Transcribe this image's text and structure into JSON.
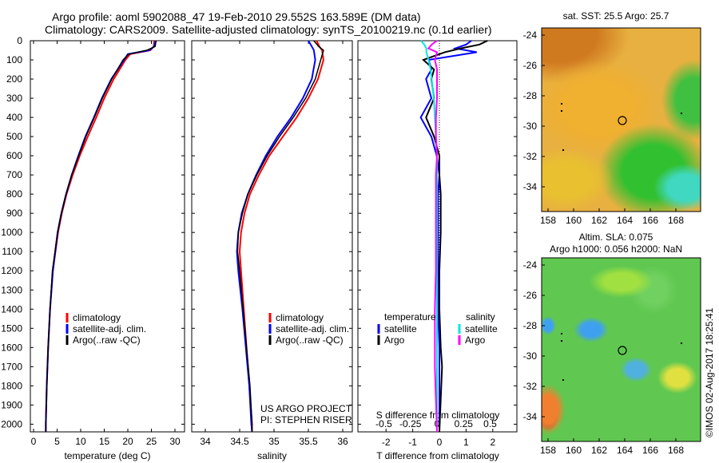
{
  "titles": {
    "line1": "Argo profile: aoml 5902088_47 19-Feb-2010 29.552S 163.589E (DM data)",
    "line2": "Climatology: CARS2009. Satellite-adjusted climatology: synTS_20100219.nc (0.1d earlier)"
  },
  "colors": {
    "climatology": "#ff0000",
    "satellite": "#0000ff",
    "argo": "#000000",
    "sal_satellite": "#00e5e5",
    "sal_argo": "#ff00ff"
  },
  "chart_data": [
    {
      "type": "line",
      "name": "temperature",
      "xlabel": "temperature (deg C)",
      "xlim": [
        -2,
        32
      ],
      "ylim": [
        2050,
        0
      ],
      "xticks": [
        "0",
        "5",
        "10",
        "15",
        "20",
        "25",
        "30"
      ],
      "xtick_values": [
        0,
        5,
        10,
        15,
        20,
        25,
        30
      ],
      "yticks": [
        "0",
        "100",
        "200",
        "300",
        "400",
        "500",
        "600",
        "700",
        "800",
        "900",
        "1000",
        "1100",
        "1200",
        "1300",
        "1400",
        "1500",
        "1600",
        "1700",
        "1800",
        "1900",
        "2000"
      ],
      "depth": [
        0,
        30,
        50,
        70,
        100,
        200,
        300,
        400,
        500,
        600,
        700,
        800,
        900,
        1000,
        1200,
        1400,
        1600,
        1800,
        2000,
        2040
      ],
      "series": [
        {
          "name": "climatology",
          "values": [
            25.6,
            25.5,
            24.8,
            20.5,
            19.5,
            17,
            15,
            13.3,
            11.5,
            9.8,
            8.3,
            7,
            6,
            5.2,
            4.1,
            3.5,
            3.1,
            2.8,
            2.6,
            2.6
          ]
        },
        {
          "name": "satellite-adj. clim.",
          "values": [
            25.9,
            25.6,
            24.5,
            20,
            19.2,
            16.5,
            14.5,
            12.8,
            11,
            9.5,
            8.1,
            6.9,
            5.9,
            5.1,
            4.1,
            3.5,
            3.1,
            2.8,
            2.6,
            2.6
          ]
        },
        {
          "name": "Argo(..raw -QC)",
          "values": [
            26,
            25.8,
            24,
            20.2,
            19,
            16.6,
            14.6,
            12.9,
            11.1,
            9.6,
            8.1,
            6.9,
            5.9,
            5.1,
            4,
            3.5,
            3.1,
            2.8,
            2.6,
            2.6
          ]
        }
      ],
      "legend": [
        "climatology",
        "satellite-adj. clim.",
        "Argo(..raw -QC)"
      ]
    },
    {
      "type": "line",
      "name": "salinity",
      "xlabel": "salinity",
      "xlim": [
        33.6,
        36.2
      ],
      "ylim": [
        2050,
        0
      ],
      "xticks": [
        "34",
        "34.5",
        "35",
        "35.5",
        "36"
      ],
      "xtick_values": [
        34,
        34.5,
        35,
        35.5,
        36
      ],
      "depth": [
        0,
        30,
        50,
        100,
        200,
        300,
        400,
        500,
        600,
        700,
        800,
        900,
        1000,
        1100,
        1200,
        1400,
        1600,
        1800,
        2000,
        2040
      ],
      "series": [
        {
          "name": "climatology",
          "values": [
            35.62,
            35.66,
            35.7,
            35.72,
            35.64,
            35.5,
            35.33,
            35.13,
            34.93,
            34.78,
            34.65,
            34.57,
            34.52,
            34.5,
            34.52,
            34.56,
            34.6,
            34.64,
            34.68,
            34.68
          ]
        },
        {
          "name": "satellite-adj. clim.",
          "values": [
            35.5,
            35.55,
            35.58,
            35.6,
            35.55,
            35.42,
            35.25,
            35.05,
            34.88,
            34.74,
            34.62,
            34.53,
            34.48,
            34.46,
            34.48,
            34.54,
            34.59,
            34.64,
            34.67,
            34.68
          ]
        },
        {
          "name": "Argo(..raw -QC)",
          "values": [
            35.58,
            35.65,
            35.72,
            35.68,
            35.6,
            35.46,
            35.28,
            35.08,
            34.9,
            34.75,
            34.62,
            34.54,
            34.48,
            34.47,
            34.5,
            34.55,
            34.6,
            34.65,
            34.68,
            34.68
          ]
        }
      ],
      "legend": [
        "climatology",
        "satellite-adj. clim.",
        "Argo(..raw -QC)"
      ],
      "annotations": [
        "US ARGO PROJECT",
        "PI: STEPHEN RISER"
      ]
    },
    {
      "type": "line",
      "name": "difference",
      "xlabel": "T difference from climatology",
      "x2label": "S difference from climatology",
      "xlim": [
        -3,
        3
      ],
      "x2lim": [
        -0.75,
        0.75
      ],
      "ylim": [
        2050,
        0
      ],
      "xticks": [
        "-2",
        "-1",
        "0",
        "1",
        "2"
      ],
      "xtick_values": [
        -2,
        -1,
        0,
        1,
        2
      ],
      "x2ticks": [
        "-0.5",
        "-0.25",
        "0",
        "0.25",
        "0.5"
      ],
      "x2tick_values": [
        -0.5,
        -0.25,
        0,
        0.25,
        0.5
      ],
      "depth": [
        0,
        20,
        40,
        60,
        100,
        150,
        200,
        300,
        400,
        500,
        600,
        700,
        800,
        1000,
        1200,
        1400,
        1600,
        1700,
        2040
      ],
      "series": [
        {
          "name": "T satellite",
          "values": [
            1.2,
            1.0,
            0.6,
            1.4,
            -0.4,
            -0.3,
            -0.5,
            -0.3,
            -0.7,
            -0.3,
            -0.1,
            0,
            -0.05,
            -0.05,
            -0.05,
            -0.05,
            0,
            0,
            0
          ]
        },
        {
          "name": "T Argo",
          "values": [
            1.8,
            1.5,
            0.8,
            0.2,
            -0.6,
            -0.2,
            -0.3,
            -0.2,
            -0.5,
            -0.2,
            0,
            0,
            0.05,
            0.05,
            0,
            0,
            0.05,
            0.1,
            0
          ]
        },
        {
          "name": "S satellite",
          "values": [
            -0.15,
            -0.12,
            -0.1,
            -0.1,
            -0.08,
            -0.06,
            -0.05,
            -0.03,
            -0.02,
            -0.01,
            0,
            0,
            0,
            0,
            0,
            0,
            0,
            0,
            0
          ]
        },
        {
          "name": "S Argo",
          "values": [
            0,
            -0.05,
            -0.08,
            0,
            -0.02,
            0,
            0,
            0,
            -0.01,
            -0.01,
            0,
            -0.01,
            -0.01,
            -0.01,
            -0.01,
            -0.02,
            -0.02,
            -0.02,
            0
          ]
        }
      ],
      "legend_temperature": {
        "title": "temperature",
        "items": [
          "satellite",
          "Argo"
        ]
      },
      "legend_salinity": {
        "title": "salinity",
        "items": [
          "satellite",
          "Argo"
        ]
      }
    }
  ],
  "maps": {
    "sst": {
      "title": "sat. SST: 25.5 Argo: 25.7"
    },
    "sla": {
      "title1": "Altim. SLA: 0.075",
      "title2": "Argo h1000: 0.056 h2000: NaN"
    },
    "lon_ticks": [
      "158",
      "160",
      "162",
      "164",
      "166",
      "168"
    ],
    "lat_ticks": [
      "-24",
      "-26",
      "-28",
      "-30",
      "-32",
      "-34"
    ]
  },
  "credit": "©IMOS 02-Aug-2017 18:25:41"
}
